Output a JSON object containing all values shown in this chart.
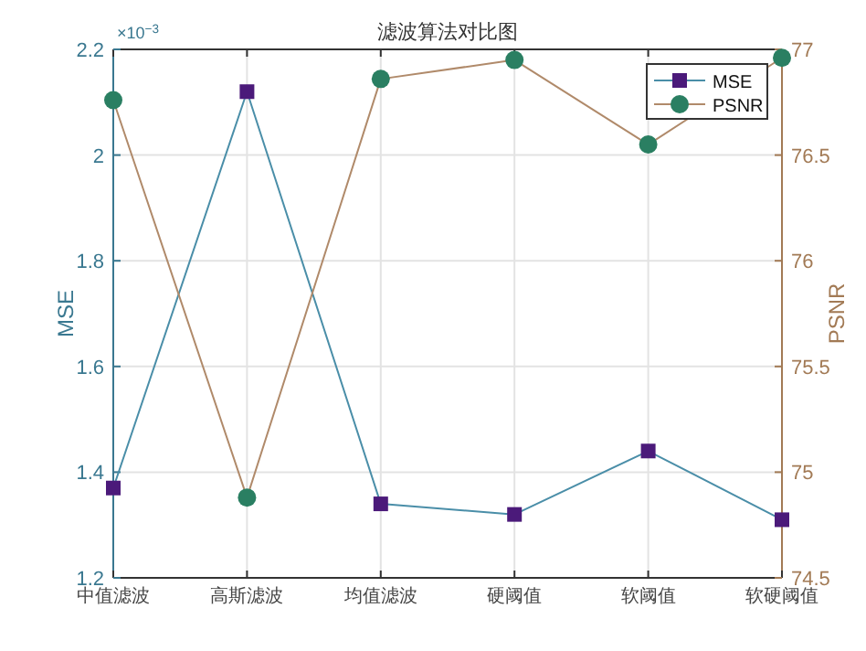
{
  "chart_data": {
    "type": "line",
    "title": "滤波算法对比图",
    "ylabel": "MSE",
    "y2label": "PSNR",
    "annotations": [
      "×10$^{−3}$"
    ],
    "categories": [
      "中值滤波",
      "高斯滤波",
      "均值滤波",
      "硬阈值",
      "软阈值",
      "软硬阈值"
    ],
    "series": [
      {
        "name": "MSE",
        "color": "#4a8ea8",
        "colors": [
          "#4b1a7a",
          "#4b1a7a",
          "#4b1a7a",
          "#4b1a7a",
          "#4b1a7a",
          "#4b1a7a"
        ],
        "marker": "square",
        "values": [
          1.37,
          2.12,
          1.34,
          1.32,
          1.44,
          1.31
        ]
      },
      {
        "name": "PSNR",
        "color": "#b08a6a",
        "colors": [
          "#2a7f62",
          "#2a7f62",
          "#2a7f62",
          "#2a7f62",
          "#2a7f62",
          "#2a7f62"
        ],
        "marker": "circle",
        "axis": "y2",
        "values": [
          76.76,
          74.88,
          76.86,
          76.95,
          76.55,
          76.96
        ]
      }
    ],
    "ylim": [
      1.2,
      2.2
    ],
    "yticks": [
      1.2,
      1.4,
      1.6,
      1.8,
      2,
      2.2
    ],
    "y2lim": [
      74.5,
      77
    ],
    "y2ticks": [
      74.5,
      75,
      75.5,
      76,
      76.5,
      77
    ],
    "grid": true,
    "legend": "top right",
    "line_style": "solid"
  }
}
